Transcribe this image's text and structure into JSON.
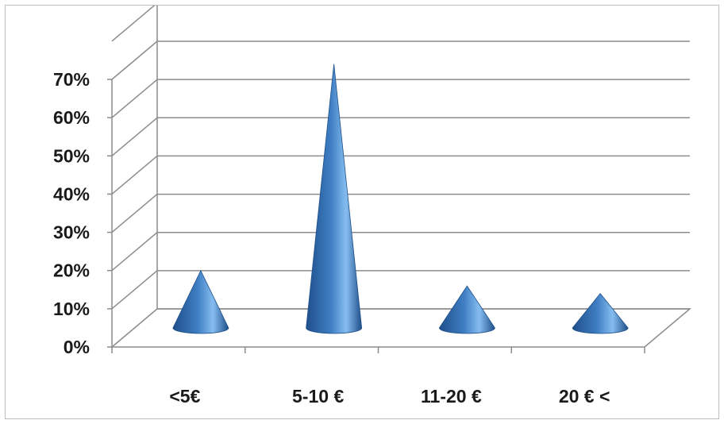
{
  "chart_data": {
    "type": "bar",
    "bar_shape": "3d-cone",
    "categories": [
      "<5€",
      "5-10 €",
      "11-20 €",
      "20 € <"
    ],
    "values": [
      15,
      69,
      11,
      9
    ],
    "unit": "%",
    "ylim": [
      0,
      80
    ],
    "yticks": [
      "0%",
      "10%",
      "20%",
      "30%",
      "40%",
      "50%",
      "60%",
      "70%"
    ],
    "grid": true,
    "legend": "none",
    "title": "",
    "xlabel": "",
    "ylabel": "",
    "colors": {
      "cone_dark": "#1f4f8a",
      "cone_mid": "#3f7fc4",
      "cone_light": "#86bdf0",
      "gridline": "#8c8c8c"
    }
  }
}
